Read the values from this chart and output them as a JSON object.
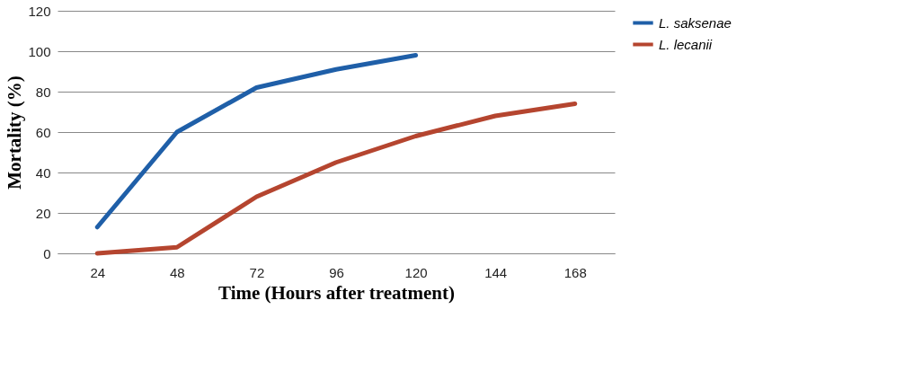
{
  "chart_data": {
    "type": "line",
    "xlabel": "Time (Hours after treatment)",
    "ylabel": "Mortality (%)",
    "categories": [
      "24",
      "48",
      "72",
      "96",
      "120",
      "144",
      "168"
    ],
    "series": [
      {
        "name": "L. saksenae",
        "color": "#1f5fa8",
        "values": [
          13,
          60,
          82,
          91,
          98,
          null,
          null
        ]
      },
      {
        "name": "L. lecanii",
        "color": "#b5452f",
        "values": [
          0,
          3,
          28,
          45,
          58,
          68,
          74
        ]
      }
    ],
    "ylim": [
      0,
      120
    ],
    "yticks": [
      0,
      20,
      40,
      60,
      80,
      100,
      120
    ],
    "grid": "y",
    "legend": "right",
    "marker": "none",
    "line_style": "solid"
  }
}
